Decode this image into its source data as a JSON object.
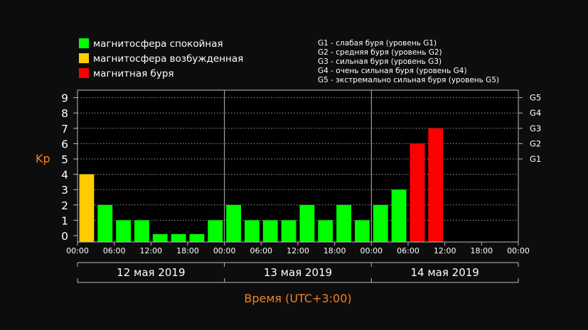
{
  "legend": {
    "items": [
      {
        "label": "магнитосфера спокойная",
        "color": "#00ff00"
      },
      {
        "label": "магнитосфера возбужденная",
        "color": "#ffcc00"
      },
      {
        "label": "магнитная буря",
        "color": "#ff0000"
      }
    ],
    "g_levels": [
      "G1 - слабая буря (уровень G1)",
      "G2 - средняя буря (уровень G2)",
      "G3 - сильная буря (уровень G3)",
      "G4 - очень сильная буря (уровень G4)",
      "G5 - экстремально сильная буря (уровень G5)"
    ]
  },
  "chart_data": {
    "type": "bar",
    "ylabel": "Kp",
    "xlabel": "Время (UTC+3:00)",
    "ylim": [
      0,
      9
    ],
    "yticks": [
      0,
      1,
      2,
      3,
      4,
      5,
      6,
      7,
      8,
      9
    ],
    "g_ticks": [
      {
        "label": "G1",
        "kp": 5
      },
      {
        "label": "G2",
        "kp": 6
      },
      {
        "label": "G3",
        "kp": 7
      },
      {
        "label": "G4",
        "kp": 8
      },
      {
        "label": "G5",
        "kp": 9
      }
    ],
    "grid": true,
    "x_tick_labels": [
      "00:00",
      "06:00",
      "12:00",
      "18:00",
      "00:00",
      "06:00",
      "12:00",
      "18:00",
      "00:00",
      "06:00",
      "12:00",
      "18:00",
      "00:00"
    ],
    "days": [
      "12 мая 2019",
      "13 мая 2019",
      "14 мая 2019"
    ],
    "bar_interval_hours": 3,
    "values": [
      4,
      2,
      1,
      1,
      0.1,
      0.1,
      0.1,
      1,
      2,
      1,
      1,
      1,
      2,
      1,
      2,
      1,
      2,
      3,
      6,
      7
    ],
    "colors": [
      "#ffcc00",
      "#00ff00",
      "#00ff00",
      "#00ff00",
      "#00ff00",
      "#00ff00",
      "#00ff00",
      "#00ff00",
      "#00ff00",
      "#00ff00",
      "#00ff00",
      "#00ff00",
      "#00ff00",
      "#00ff00",
      "#00ff00",
      "#00ff00",
      "#00ff00",
      "#00ff00",
      "#ff0000",
      "#ff0000"
    ]
  }
}
